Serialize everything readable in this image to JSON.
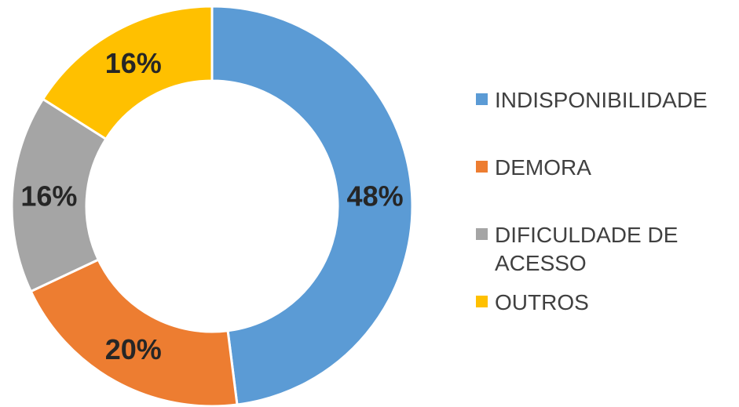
{
  "colors": {
    "indisponibilidade": "#5B9BD5",
    "demora": "#ED7D31",
    "dificuldade": "#A5A5A5",
    "outros": "#FFC000"
  },
  "chart_data": {
    "type": "pie",
    "variant": "donut",
    "title": "",
    "categories": [
      "INDISPONIBILIDADE",
      "DEMORA",
      "DIFICULDADE DE ACESSO",
      "OUTROS"
    ],
    "values": [
      48,
      20,
      16,
      16
    ],
    "labels": [
      "48%",
      "20%",
      "16%",
      "16%"
    ],
    "unit": "%",
    "legend_position": "right"
  }
}
